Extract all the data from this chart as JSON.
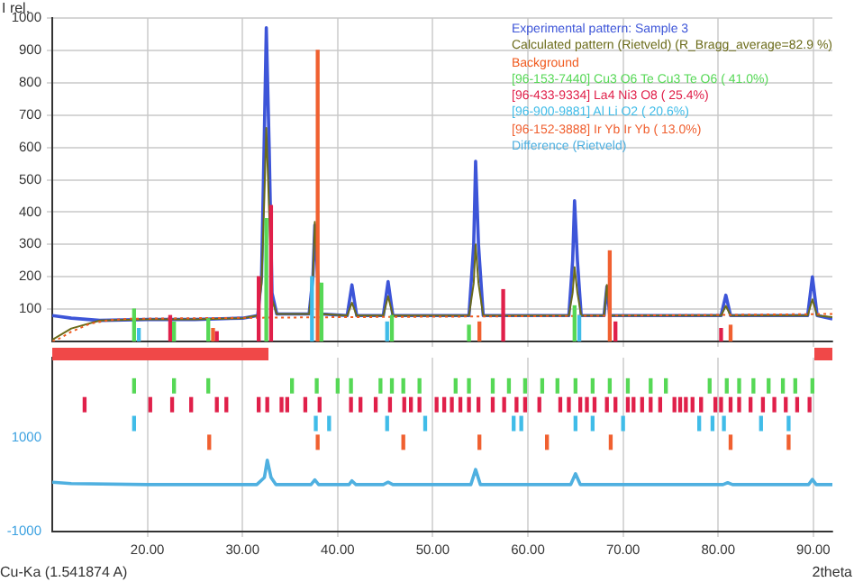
{
  "chart_data": [
    {
      "type": "line",
      "ylabel": "I rel.",
      "xlim": [
        10,
        92
      ],
      "xticks": [
        20,
        30,
        40,
        50,
        60,
        70,
        80,
        90
      ],
      "ylim": [
        0,
        1000
      ],
      "yticks": [
        100,
        200,
        300,
        400,
        500,
        600,
        700,
        800,
        900,
        1000
      ],
      "tick_labels": "y",
      "grid": true,
      "legend": "top right",
      "series": [
        {
          "name": "Experimental pattern: Sample 3",
          "color": "#3d55d8",
          "x": [
            10,
            12,
            15,
            20,
            25,
            30,
            31.6,
            32,
            32.3,
            32.5,
            32.8,
            33.1,
            33.6,
            37,
            37.4,
            37.6,
            37.9,
            38.3,
            41,
            41.5,
            42,
            44.8,
            45.3,
            45.8,
            53.8,
            54.3,
            54.5,
            54.8,
            55.3,
            64.3,
            64.7,
            64.9,
            65.2,
            65.6,
            68,
            68.3,
            68.6,
            80.3,
            80.8,
            81.3,
            89.4,
            89.9,
            90.4,
            92
          ],
          "values": [
            80,
            72,
            65,
            68,
            68,
            72,
            80,
            200,
            650,
            970,
            600,
            150,
            85,
            85,
            200,
            360,
            200,
            85,
            80,
            175,
            80,
            80,
            185,
            80,
            80,
            300,
            557,
            300,
            80,
            80,
            250,
            435,
            250,
            80,
            80,
            170,
            80,
            80,
            143,
            80,
            80,
            200,
            80,
            70
          ]
        },
        {
          "name": "Calculated pattern (Rietveld) (R_Bragg_average=82.9 %)",
          "color": "#6b6b1a",
          "x": [
            10,
            12,
            15,
            20,
            25,
            30,
            31.6,
            32,
            32.3,
            32.5,
            32.8,
            33.1,
            33.6,
            37,
            37.4,
            37.6,
            37.9,
            38.3,
            41,
            41.5,
            42,
            44.8,
            45.3,
            45.8,
            53.8,
            54.3,
            54.5,
            54.8,
            55.3,
            64.3,
            64.7,
            64.9,
            65.2,
            65.6,
            68,
            68.3,
            68.6,
            80.3,
            80.8,
            81.3,
            89.4,
            89.9,
            90.4,
            92
          ],
          "values": [
            5,
            40,
            65,
            68,
            68,
            72,
            80,
            180,
            450,
            660,
            400,
            130,
            85,
            85,
            200,
            370,
            200,
            85,
            80,
            120,
            80,
            80,
            140,
            80,
            80,
            180,
            300,
            180,
            80,
            80,
            150,
            230,
            150,
            80,
            80,
            175,
            80,
            80,
            110,
            80,
            80,
            130,
            80,
            75
          ]
        },
        {
          "name": "Background",
          "color": "#f05a1e",
          "line_style": "dotted",
          "x": [
            10,
            10.5,
            12,
            14,
            16,
            18,
            25,
            40,
            60,
            80,
            92
          ],
          "values": [
            0,
            5,
            30,
            55,
            66,
            70,
            72,
            75,
            78,
            82,
            85
          ]
        },
        {
          "name": "[96-153-7440] Cu3 O6 Te Cu3 Te O6 ( 41.0%)",
          "type": "bar",
          "color": "#56d856",
          "x": [
            18.6,
            22.8,
            26.4,
            32.5,
            38.3,
            45.7,
            53.8,
            64.9
          ],
          "values": [
            100,
            60,
            70,
            380,
            180,
            80,
            50,
            110
          ]
        },
        {
          "name": "[96-433-9334] La4 Ni3 O8  ( 25.4%)",
          "type": "bar",
          "color": "#e0204a",
          "x": [
            22.4,
            27.3,
            31.7,
            33.0,
            57.4,
            69.2,
            80.3
          ],
          "values": [
            80,
            30,
            200,
            420,
            160,
            60,
            40
          ]
        },
        {
          "name": "[96-900-9881] Al Li O2  ( 20.6%)",
          "type": "bar",
          "color": "#40bce8",
          "x": [
            19.1,
            37.3,
            45.2,
            65.4
          ],
          "values": [
            40,
            200,
            60,
            80
          ]
        },
        {
          "name": "[96-152-3888] Ir Yb Ir Yb ( 13.0%)",
          "type": "bar",
          "color": "#f06030",
          "x": [
            26.9,
            37.9,
            54.9,
            68.6,
            81.3
          ],
          "values": [
            40,
            900,
            60,
            280,
            50
          ]
        }
      ]
    },
    {
      "type": "line",
      "xlabel": "2theta",
      "annotations": [
        "Cu-Ka (1.541874 A)"
      ],
      "xlim": [
        10,
        92
      ],
      "xticks": [
        {
          "value": 20,
          "label": "20.00"
        },
        {
          "value": 30,
          "label": "30.00"
        },
        {
          "value": 40,
          "label": "40.00"
        },
        {
          "value": 50,
          "label": "50.00"
        },
        {
          "value": 60,
          "label": "60.00"
        },
        {
          "value": 70,
          "label": "70.00"
        },
        {
          "value": 80,
          "label": "80.00"
        },
        {
          "value": 90,
          "label": "90.00"
        }
      ],
      "ylim": [
        -1000,
        2700
      ],
      "yticks": [
        -1000,
        1000
      ],
      "grid": "x",
      "legend": "top right",
      "series": [
        {
          "type": "bar",
          "color": "#56d856",
          "x": [
            18.6,
            22.8,
            26.4,
            35.2,
            37.8,
            40.0,
            41.4,
            44.5,
            45.7,
            46.9,
            48.6,
            52.4,
            53.8,
            56.3,
            58.0,
            59.7,
            61.5,
            63.1,
            65.0,
            66.8,
            68.6,
            70.5,
            72.9,
            74.5,
            79.1,
            80.9,
            82.2,
            83.7,
            85.3,
            86.8,
            88.1,
            89.9
          ],
          "base": [
            1950,
            1950,
            1950,
            1950,
            1950,
            1950,
            1950,
            1950,
            1950,
            1950,
            1950,
            1950,
            1950,
            1950,
            1950,
            1950,
            1950,
            1950,
            1950,
            1950,
            1950,
            1950,
            1950,
            1950,
            1950,
            1950,
            1950,
            1950,
            1950,
            1950,
            1950,
            1950
          ],
          "values": [
            300,
            300,
            300,
            300,
            300,
            300,
            300,
            300,
            300,
            300,
            300,
            300,
            300,
            300,
            300,
            300,
            300,
            300,
            300,
            300,
            300,
            300,
            300,
            300,
            300,
            300,
            300,
            300,
            300,
            300,
            300,
            300
          ]
        },
        {
          "type": "bar",
          "color": "#e0204a",
          "x": [
            13.4,
            20.3,
            22.6,
            24.6,
            27.3,
            28.3,
            31.7,
            32.6,
            34.1,
            34.7,
            36.6,
            38.1,
            41.4,
            42.4,
            44.0,
            45.5,
            47.0,
            47.7,
            48.6,
            50.4,
            51.2,
            52.0,
            52.9,
            53.8,
            54.8,
            56.3,
            57.5,
            58.8,
            59.7,
            61.2,
            63.4,
            64.3,
            65.5,
            66.2,
            67.0,
            68.3,
            69.2,
            70.5,
            71.1,
            72.0,
            72.9,
            73.9,
            75.4,
            76.0,
            76.6,
            77.3,
            78.2,
            79.7,
            80.3,
            81.3,
            82.2,
            83.4,
            84.7,
            85.9,
            87.1,
            88.3,
            89.6
          ],
          "base": [
            1550,
            1550,
            1550,
            1550,
            1550,
            1550,
            1550,
            1550,
            1550,
            1550,
            1550,
            1550,
            1550,
            1550,
            1550,
            1550,
            1550,
            1550,
            1550,
            1550,
            1550,
            1550,
            1550,
            1550,
            1550,
            1550,
            1550,
            1550,
            1550,
            1550,
            1550,
            1550,
            1550,
            1550,
            1550,
            1550,
            1550,
            1550,
            1550,
            1550,
            1550,
            1550,
            1550,
            1550,
            1550,
            1550,
            1550,
            1550,
            1550,
            1550,
            1550,
            1550,
            1550,
            1550,
            1550,
            1550,
            1550
          ],
          "values": [
            300,
            300,
            300,
            300,
            300,
            300,
            300,
            300,
            300,
            300,
            300,
            300,
            300,
            300,
            300,
            300,
            300,
            300,
            300,
            300,
            300,
            300,
            300,
            300,
            300,
            300,
            300,
            300,
            300,
            300,
            300,
            300,
            300,
            300,
            300,
            300,
            300,
            300,
            300,
            300,
            300,
            300,
            300,
            300,
            300,
            300,
            300,
            300,
            300,
            300,
            300,
            300,
            300,
            300,
            300,
            300,
            300
          ]
        },
        {
          "type": "bar",
          "color": "#40bce8",
          "x": [
            18.6,
            37.7,
            39.1,
            45.2,
            49.2,
            58.5,
            59.3,
            65.0,
            66.8,
            70.0,
            78.0,
            79.4,
            80.6,
            84.5,
            87.4
          ],
          "base": [
            1150,
            1150,
            1150,
            1150,
            1150,
            1150,
            1150,
            1150,
            1150,
            1150,
            1150,
            1150,
            1150,
            1150,
            1150
          ],
          "values": [
            300,
            300,
            300,
            300,
            300,
            300,
            300,
            300,
            300,
            300,
            300,
            300,
            300,
            300,
            300
          ]
        },
        {
          "type": "bar",
          "color": "#f06030",
          "x": [
            26.5,
            37.9,
            46.9,
            54.9,
            62.0,
            68.7,
            81.3,
            87.4
          ],
          "base": [
            750,
            750,
            750,
            750,
            750,
            750,
            750,
            750
          ],
          "values": [
            300,
            300,
            300,
            300,
            300,
            300,
            300,
            300
          ]
        },
        {
          "name": "Difference (Rietveld)",
          "color": "#4fb0e0",
          "x": [
            10,
            12,
            20,
            31.5,
            32.3,
            32.6,
            33,
            33.5,
            37.2,
            37.6,
            38,
            41.2,
            41.5,
            41.9,
            44.8,
            45.3,
            45.8,
            54,
            54.5,
            55,
            64.5,
            65,
            65.5,
            80.5,
            81,
            81.5,
            89.5,
            89.9,
            90.3,
            92
          ],
          "values": [
            50,
            20,
            0,
            0,
            150,
            520,
            150,
            0,
            0,
            100,
            0,
            0,
            80,
            0,
            0,
            50,
            0,
            0,
            320,
            0,
            0,
            230,
            0,
            0,
            40,
            0,
            0,
            110,
            0,
            0
          ]
        }
      ]
    }
  ]
}
